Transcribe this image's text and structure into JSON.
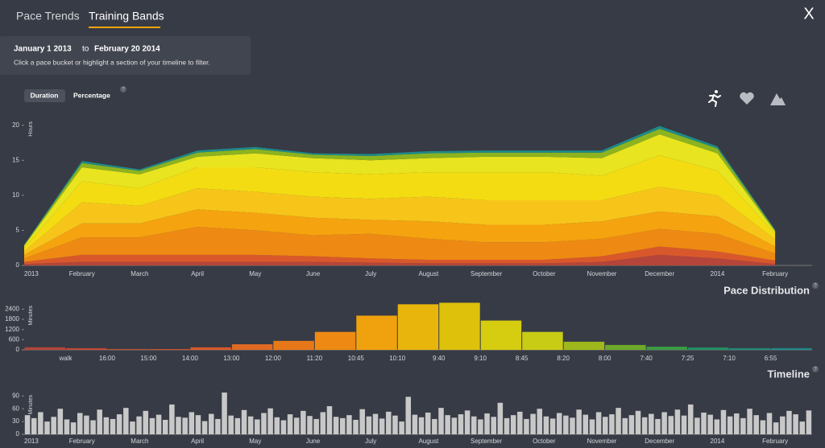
{
  "tabs": [
    "Pace Trends",
    "Training Bands"
  ],
  "close": "X",
  "date_range": {
    "start": "January 1 2013",
    "to": "to",
    "end": "February 20 2014"
  },
  "instructions": "Click a pace bucket or highlight a section of your timeline to filter.",
  "toggles": [
    "Duration",
    "Percentage"
  ],
  "help": "?",
  "chart_data": [
    {
      "type": "stacked_area",
      "y_label": "Hours",
      "categories": [
        "2013",
        "February",
        "March",
        "April",
        "May",
        "June",
        "July",
        "August",
        "September",
        "October",
        "November",
        "December",
        "2014",
        "February"
      ],
      "ylim": [
        0,
        21
      ],
      "yticks": [
        0,
        5,
        10,
        15,
        20
      ],
      "series": [
        {
          "color": "#b5453a",
          "values": [
            0.2,
            0.5,
            0.5,
            0.5,
            0.5,
            0.5,
            0.4,
            0.3,
            0.3,
            0.3,
            0.5,
            1.5,
            1,
            0.2
          ]
        },
        {
          "color": "#d9582b",
          "values": [
            0.3,
            1,
            1,
            1,
            1,
            0.8,
            0.6,
            0.5,
            0.5,
            0.5,
            0.8,
            1.2,
            1,
            0.5
          ]
        },
        {
          "color": "#ee8a13",
          "values": [
            0.5,
            2.5,
            2.5,
            4,
            3.5,
            3,
            3.5,
            3,
            2.5,
            2.5,
            2.5,
            2.5,
            2.5,
            1
          ]
        },
        {
          "color": "#f5a30f",
          "values": [
            0.5,
            2,
            2,
            2.5,
            2.5,
            2.5,
            2,
            2.5,
            2.5,
            2.5,
            2.5,
            2.5,
            2.5,
            1
          ]
        },
        {
          "color": "#f7c51a",
          "values": [
            0.5,
            3,
            2.5,
            3,
            3,
            3,
            3,
            3.5,
            3.5,
            3.5,
            3,
            3.5,
            3,
            1
          ]
        },
        {
          "color": "#f3dc12",
          "values": [
            0.5,
            3,
            2.5,
            3,
            3.5,
            3.5,
            3.5,
            3.5,
            4,
            4,
            3.5,
            4.5,
            3.5,
            0.8
          ]
        },
        {
          "color": "#e8e41f",
          "values": [
            0.3,
            2,
            2,
            1.5,
            2,
            2,
            2,
            2,
            2.2,
            2.2,
            2.5,
            3,
            2.5,
            0.3
          ]
        },
        {
          "color": "#8db31e",
          "values": [
            0.1,
            0.6,
            0.5,
            0.6,
            0.6,
            0.5,
            0.6,
            0.7,
            0.6,
            0.6,
            0.8,
            0.8,
            0.7,
            0.2
          ]
        },
        {
          "color": "#1e8a8a",
          "values": [
            0.05,
            0.3,
            0.2,
            0.3,
            0.3,
            0.2,
            0.3,
            0.3,
            0.3,
            0.3,
            0.3,
            0.4,
            0.3,
            0.1
          ]
        }
      ]
    },
    {
      "type": "bar",
      "title": "Pace Distribution",
      "y_label": "Minutes",
      "categories": [
        null,
        "walk",
        "16:00",
        "15:00",
        "14:00",
        "13:00",
        "12:00",
        "11:20",
        "10:45",
        "10:10",
        "9:40",
        "9:10",
        "8:45",
        "8:20",
        "8:00",
        "7:40",
        "7:25",
        "7:10",
        "6:55"
      ],
      "values": [
        150,
        100,
        50,
        50,
        150,
        330,
        530,
        1060,
        2020,
        2690,
        2780,
        1730,
        1060,
        480,
        290,
        190,
        140,
        100,
        100
      ],
      "colors": [
        "#b5453a",
        "#c04a35",
        "#c84e30",
        "#d0522c",
        "#d9582b",
        "#e06a22",
        "#e7781a",
        "#ee8a13",
        "#f0a20e",
        "#e8b50c",
        "#ddc10b",
        "#d6cd10",
        "#c9cc14",
        "#9fb81b",
        "#6da82a",
        "#3b9a45",
        "#239064",
        "#1e8a7a",
        "#1e8a8a"
      ],
      "ylim": [
        0,
        2800
      ],
      "yticks": [
        0,
        600,
        1200,
        1800,
        2400
      ]
    },
    {
      "type": "bar",
      "title": "Timeline",
      "y_label": "Minutes",
      "axis_labels": [
        "2013",
        "February",
        "March",
        "April",
        "May",
        "June",
        "July",
        "August",
        "September",
        "October",
        "November",
        "December",
        "2014",
        "February"
      ],
      "color": "#c8c8c8",
      "values": [
        45,
        38,
        52,
        30,
        41,
        60,
        35,
        28,
        50,
        44,
        33,
        58,
        40,
        36,
        47,
        62,
        30,
        42,
        55,
        38,
        46,
        34,
        70,
        41,
        39,
        52,
        45,
        31,
        48,
        36,
        98,
        44,
        38,
        57,
        42,
        35,
        50,
        61,
        40,
        33,
        47,
        39,
        55,
        43,
        36,
        52,
        66,
        41,
        38,
        45,
        34,
        59,
        42,
        48,
        37,
        53,
        44,
        30,
        88,
        46,
        40,
        51,
        36,
        62,
        45,
        39,
        47,
        56,
        42,
        35,
        49,
        41,
        74,
        38,
        45,
        53,
        36,
        48,
        60,
        42,
        37,
        50,
        44,
        39,
        58,
        46,
        35,
        52,
        41,
        47,
        62,
        38,
        45,
        55,
        40,
        48,
        36,
        52,
        43,
        58,
        44,
        70,
        39,
        51,
        46,
        35,
        57,
        42,
        49,
        38,
        60,
        45,
        33,
        50,
        28,
        42,
        55,
        47,
        30,
        56
      ],
      "ylim": [
        0,
        100
      ],
      "yticks": [
        0,
        30,
        60,
        90
      ]
    }
  ]
}
